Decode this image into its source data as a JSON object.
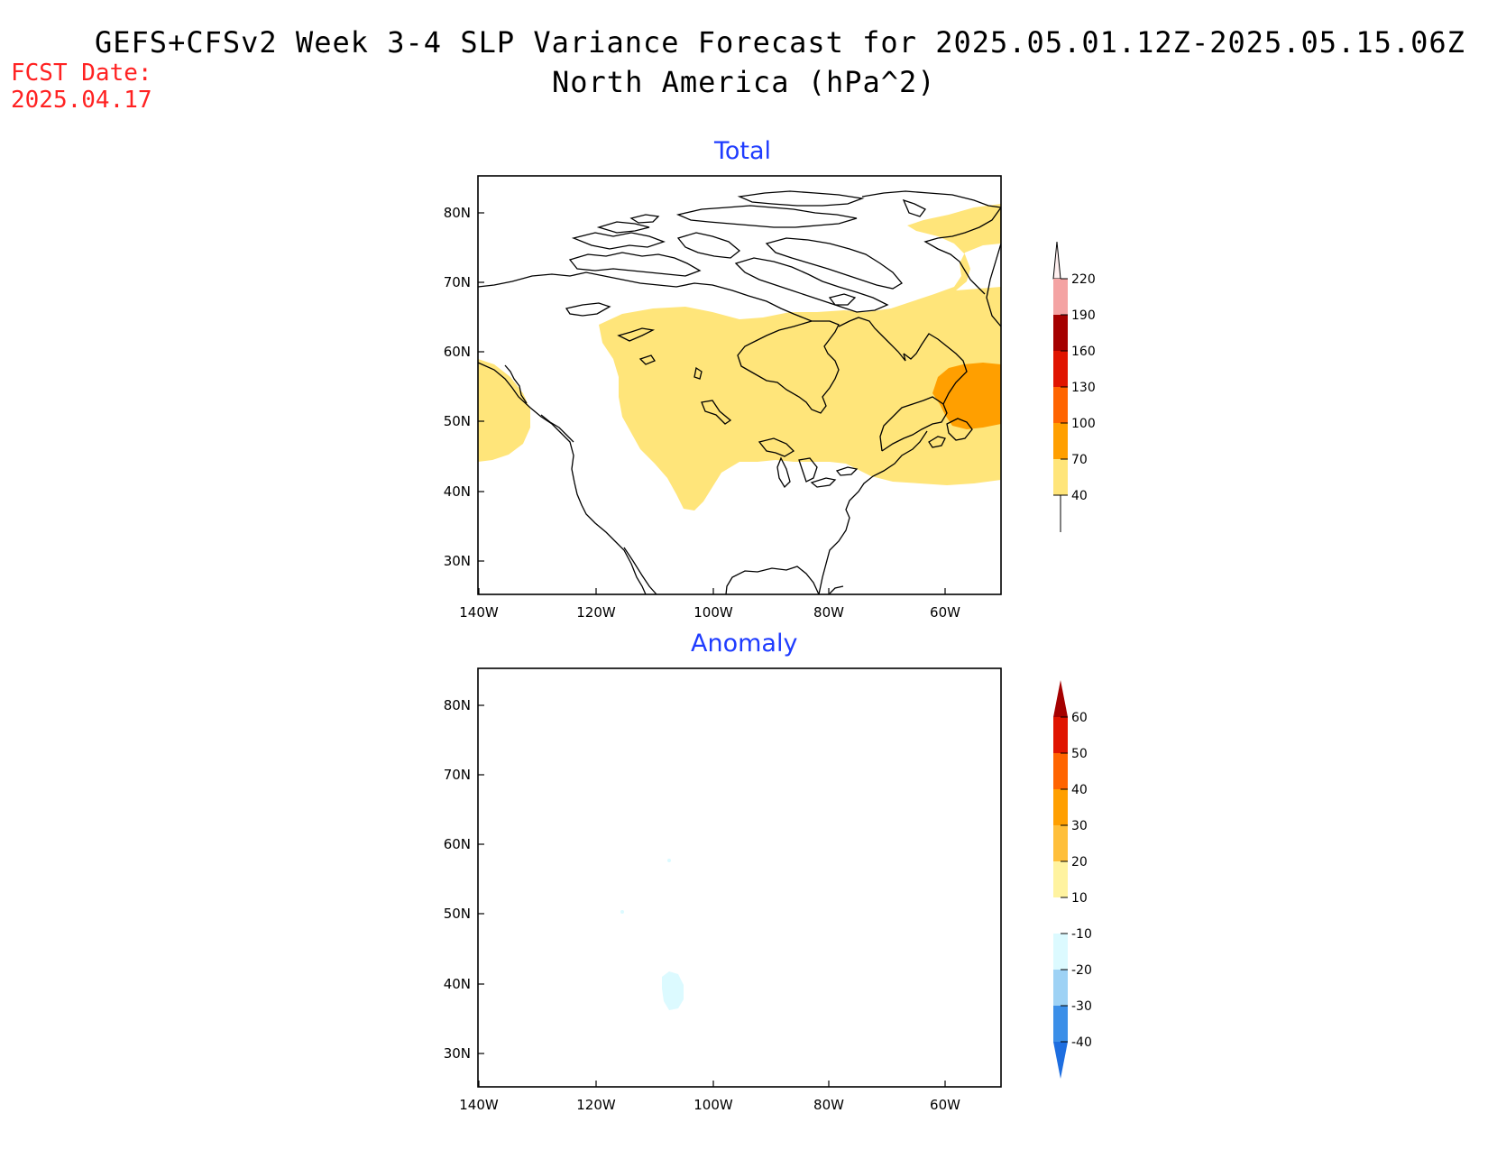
{
  "title": "GEFS+CFSv2 Week 3-4 SLP Variance Forecast for 2025.05.01.12Z-2025.05.15.06Z",
  "subtitle": "North America (hPa^2)",
  "fcst": {
    "label": "FCST Date:",
    "date": "2025.04.17"
  },
  "panels": [
    {
      "title": "Total",
      "lat_ticks": [
        "80N",
        "70N",
        "60N",
        "50N",
        "40N",
        "30N"
      ],
      "lon_ticks": [
        "140W",
        "120W",
        "100W",
        "80W",
        "60W"
      ]
    },
    {
      "title": "Anomaly",
      "lat_ticks": [
        "80N",
        "70N",
        "60N",
        "50N",
        "40N",
        "30N"
      ],
      "lon_ticks": [
        "140W",
        "120W",
        "100W",
        "80W",
        "60W"
      ]
    }
  ],
  "colorbar_total": {
    "labels": [
      "220",
      "190",
      "160",
      "130",
      "100",
      "70",
      "40"
    ],
    "colors": [
      "#fcdcdc",
      "#f4a3a3",
      "#a50000",
      "#e01400",
      "#ff6400",
      "#ff9f00",
      "#ffe57a"
    ]
  },
  "colorbar_anomaly": {
    "labels": [
      "60",
      "50",
      "40",
      "30",
      "20",
      "10",
      "-10",
      "-20",
      "-30",
      "-40"
    ],
    "colors": [
      "#a50000",
      "#e01400",
      "#ff6400",
      "#ff9f00",
      "#ffbf3a",
      "#fff3a0",
      "#ffffff",
      "#dcfaff",
      "#9ed2f5",
      "#3b8fe8",
      "#1e6ee0"
    ]
  },
  "fields": {
    "total": "Light yellow (40-70) over central Canada, northern US Plains, Great Lakes, Hudson Bay, northeast Atlantic and Greenland coast, Pacific off BC; orange (70-100) over Labrador Sea near 55N 55W",
    "anomaly": "Near-white (-10 to 10) almost everywhere; small light cyan (-20 to -10) patch near 40N 107W"
  }
}
